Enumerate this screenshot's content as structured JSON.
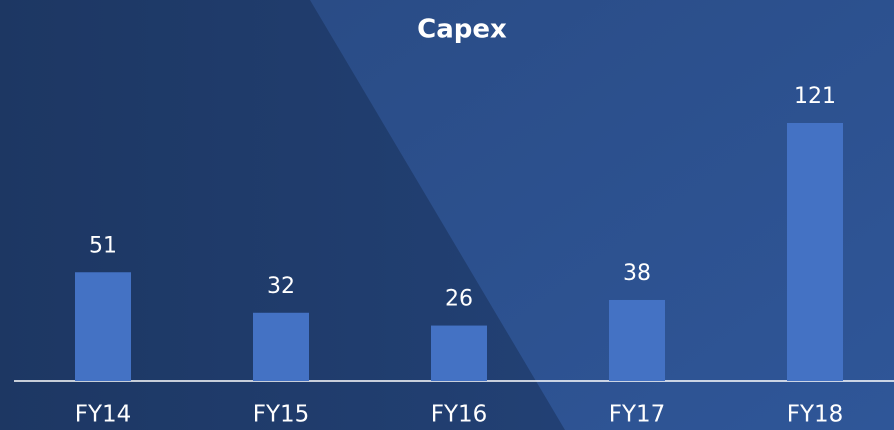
{
  "chart_data": {
    "type": "bar",
    "title": "Capex",
    "categories": [
      "FY14",
      "FY15",
      "FY16",
      "FY17",
      "FY18"
    ],
    "values": [
      51,
      32,
      26,
      38,
      121
    ],
    "color": "#4472c4"
  }
}
